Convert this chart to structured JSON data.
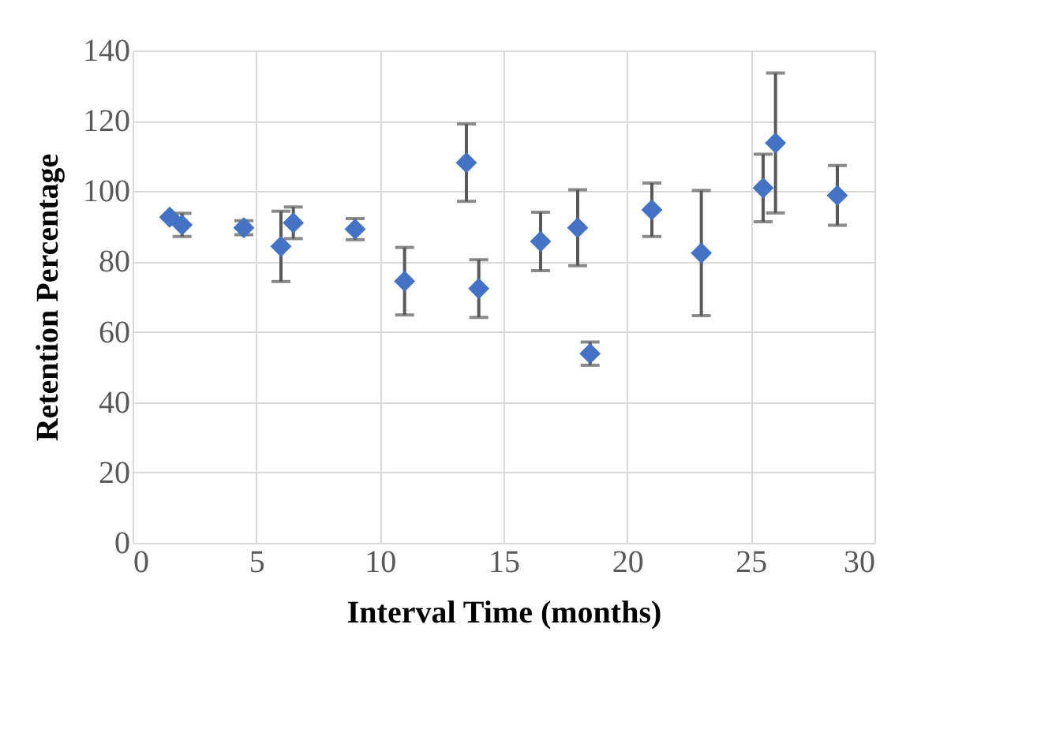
{
  "chart_data": {
    "type": "scatter",
    "xlabel": "Interval Time (months)",
    "ylabel": "Retention Percentage",
    "x": [
      1.5,
      2,
      4.5,
      6,
      6.5,
      9,
      11,
      13.5,
      14,
      16.5,
      18,
      18.5,
      21,
      23,
      25.5,
      26,
      28.5
    ],
    "series": [
      {
        "color": "#4472c4",
        "values": [
          92.6,
          90.4,
          89.6,
          84.3,
          91,
          89.2,
          74.4,
          108.1,
          72.3,
          85.7,
          89.6,
          53.8,
          94.7,
          82.4,
          100.9,
          113.7,
          98.8
        ],
        "errors": [
          null,
          3.3,
          2,
          10,
          4.5,
          3,
          9.6,
          11,
          8.2,
          8.3,
          10.8,
          3.3,
          7.6,
          17.8,
          9.6,
          19.9,
          8.5
        ]
      }
    ],
    "xlim": [
      0,
      30
    ],
    "xticks": [
      0,
      5,
      10,
      15,
      20,
      25,
      30
    ],
    "ylim": [
      0,
      140
    ],
    "yticks": [
      0,
      20,
      40,
      60,
      80,
      100,
      120,
      140
    ],
    "grid": true,
    "marker": "diamond"
  }
}
